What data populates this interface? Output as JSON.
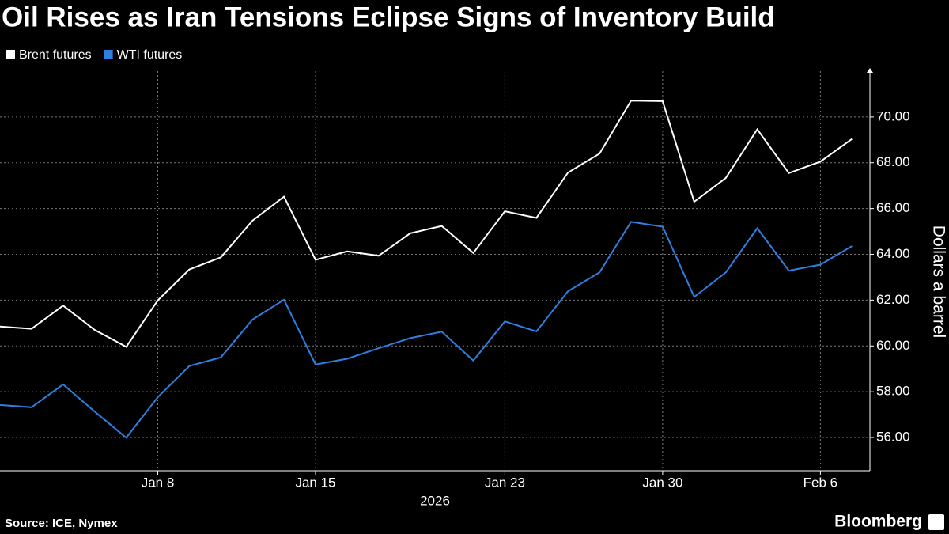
{
  "chart_data": {
    "type": "line",
    "title": "Oil Rises as Iran Tensions Eclipse Signs of Inventory Build",
    "y_label": "Dollars a barrel",
    "x_label": "2026",
    "source": "Source: ICE, Nymex",
    "brand": "Bloomberg",
    "categories": [
      null,
      null,
      null,
      null,
      null,
      "Jan 8",
      null,
      null,
      null,
      null,
      "Jan 15",
      null,
      null,
      null,
      null,
      null,
      "Jan 23",
      null,
      null,
      null,
      null,
      "Jan 30",
      null,
      null,
      null,
      null,
      "Feb 6",
      null
    ],
    "series": [
      {
        "name": "Brent futures",
        "color": "#ffffff",
        "values": [
          60.85,
          60.75,
          61.76,
          60.7,
          59.96,
          61.99,
          63.34,
          63.87,
          65.47,
          66.52,
          63.76,
          64.13,
          63.94,
          64.92,
          65.24,
          64.06,
          65.88,
          65.59,
          67.57,
          68.4,
          70.71,
          70.69,
          66.3,
          67.33,
          69.46,
          67.55,
          68.05,
          69.04
        ]
      },
      {
        "name": "WTI futures",
        "color": "#2f7fe0",
        "values": [
          57.42,
          57.32,
          58.32,
          57.13,
          55.99,
          57.76,
          59.12,
          59.5,
          61.15,
          62.02,
          59.19,
          59.44,
          59.9,
          60.34,
          60.62,
          59.36,
          61.07,
          60.63,
          62.39,
          63.21,
          65.42,
          65.21,
          62.14,
          63.21,
          65.14,
          63.29,
          63.55,
          64.36
        ]
      }
    ],
    "ylim": [
      54.55,
      72
    ],
    "yticks": [
      {
        "value": 56,
        "label": "56.00"
      },
      {
        "value": 58,
        "label": "58.00"
      },
      {
        "value": 60,
        "label": "60.00"
      },
      {
        "value": 62,
        "label": "62.00"
      },
      {
        "value": 64,
        "label": "64.00"
      },
      {
        "value": 66,
        "label": "66.00"
      },
      {
        "value": 68,
        "label": "68.00"
      },
      {
        "value": 70,
        "label": "70.00"
      }
    ],
    "grid": true,
    "legend": "top-left"
  }
}
